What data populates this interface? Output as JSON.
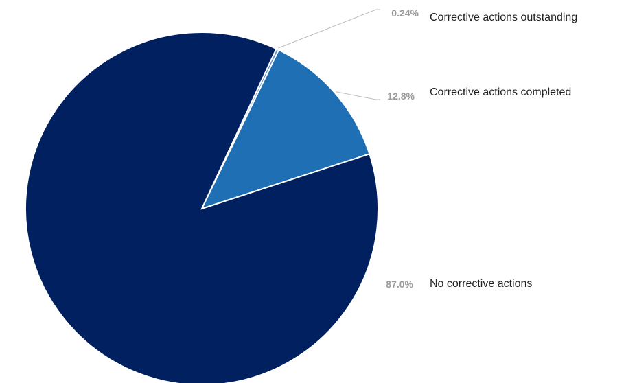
{
  "chart_data": {
    "type": "pie",
    "title": "",
    "slices": [
      {
        "name": "Corrective actions outstanding",
        "value": 0.24,
        "label": "0.24%",
        "color": "#5b8fd1"
      },
      {
        "name": "Corrective actions completed",
        "value": 12.8,
        "label": "12.8%",
        "color": "#1f6fb5"
      },
      {
        "name": "No corrective actions",
        "value": 87.0,
        "label": "87.0%",
        "color": "#002060"
      }
    ],
    "legend": "right",
    "start_angle_deg": 25,
    "direction": "clockwise"
  }
}
